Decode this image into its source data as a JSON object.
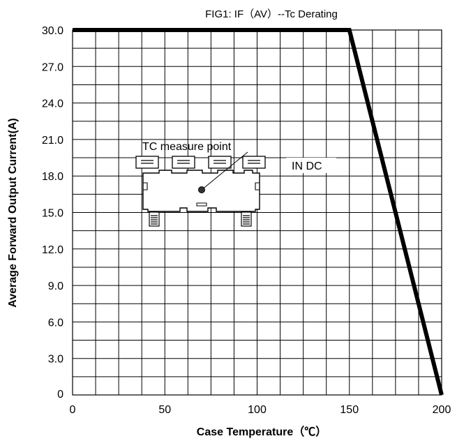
{
  "chart_data": {
    "type": "line",
    "title": "FIG1: IF（AV）--Tc  Derating",
    "xlabel": "Case Temperature（℃）",
    "ylabel": "Average Forward Output Current(A)",
    "xlim": [
      0,
      200
    ],
    "ylim": [
      0,
      30
    ],
    "x_ticks": [
      "0",
      "50",
      "100",
      "150",
      "200"
    ],
    "y_ticks": [
      "0",
      "3.0",
      "6.0",
      "9.0",
      "12.0",
      "15.0",
      "18.0",
      "21.0",
      "24.0",
      "27.0",
      "30.0"
    ],
    "grid": true,
    "series": [
      {
        "x": [
          0,
          150,
          200
        ],
        "y": [
          30,
          30,
          0
        ],
        "color": "#000000"
      }
    ],
    "annotations": [
      {
        "text": "TC measure point"
      },
      {
        "text": "IN DC"
      }
    ]
  }
}
